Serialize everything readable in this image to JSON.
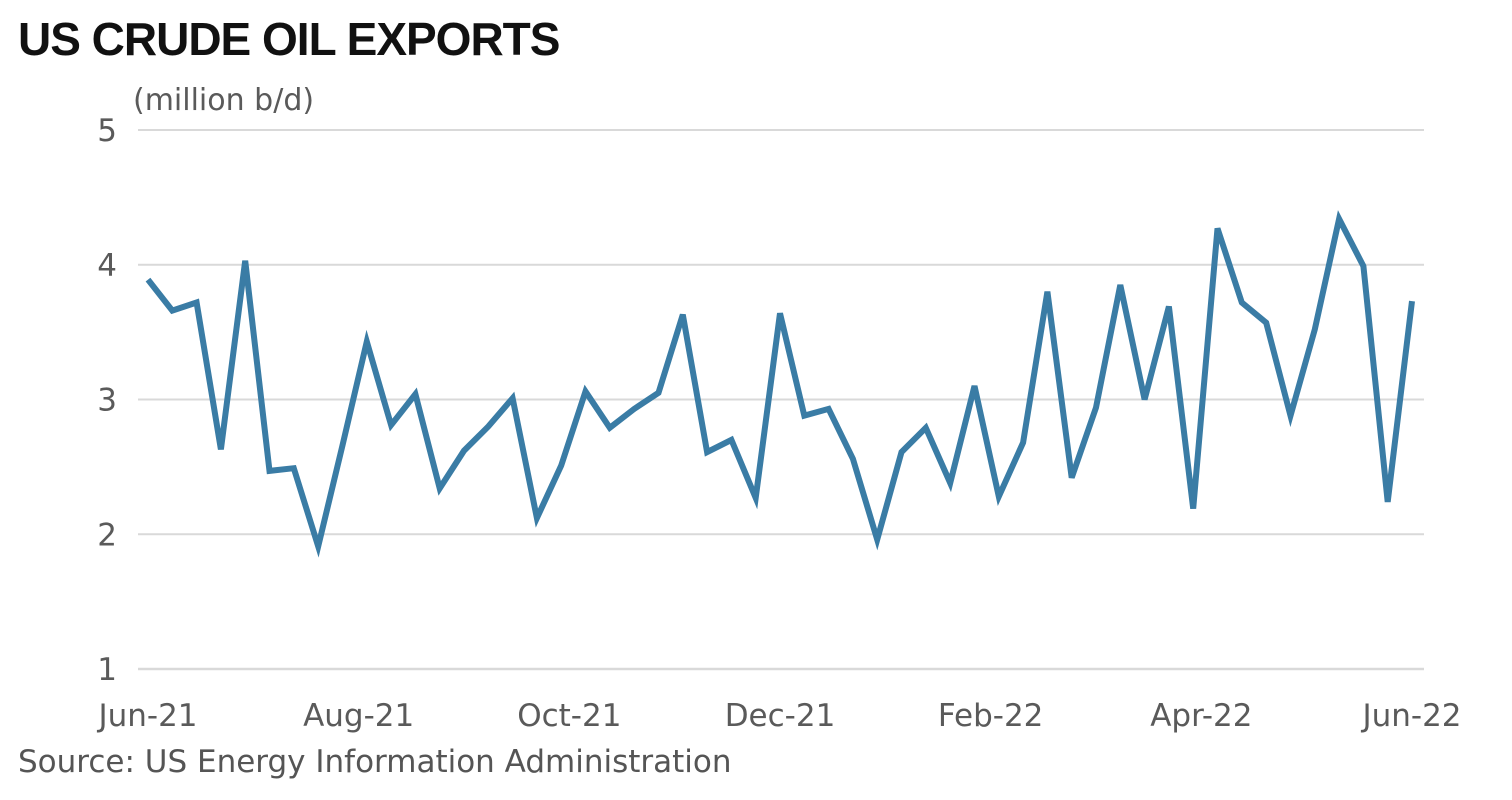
{
  "title": "US CRUDE OIL EXPORTS",
  "source": "Source: US Energy Information Administration",
  "chart_data": {
    "type": "line",
    "title": "US CRUDE OIL EXPORTS",
    "ylabel": "(million b/d)",
    "xlabel": "",
    "ylim": [
      1,
      5
    ],
    "yticks": [
      "1",
      "2",
      "3",
      "4",
      "5"
    ],
    "xticks": [
      "Jun-21",
      "Aug-21",
      "Oct-21",
      "Dec-21",
      "Feb-22",
      "Apr-22",
      "Jun-22"
    ],
    "grid": true,
    "line_color": "#3A7CA5",
    "grid_color": "#d9d9d9",
    "series": [
      {
        "values": [
          3.89,
          3.66,
          3.72,
          2.63,
          4.03,
          2.47,
          2.49,
          1.91,
          2.66,
          3.43,
          2.81,
          3.04,
          2.34,
          2.62,
          2.8,
          3.01,
          2.12,
          2.51,
          3.06,
          2.79,
          2.93,
          3.05,
          3.63,
          2.61,
          2.7,
          2.27,
          3.64,
          2.88,
          2.93,
          2.56,
          1.96,
          2.61,
          2.79,
          2.38,
          3.1,
          2.28,
          2.68,
          3.8,
          2.42,
          2.94,
          3.85,
          3.0,
          3.69,
          2.19,
          4.27,
          3.72,
          3.57,
          2.88,
          3.52,
          4.34,
          3.99,
          2.24,
          3.73
        ]
      }
    ]
  }
}
